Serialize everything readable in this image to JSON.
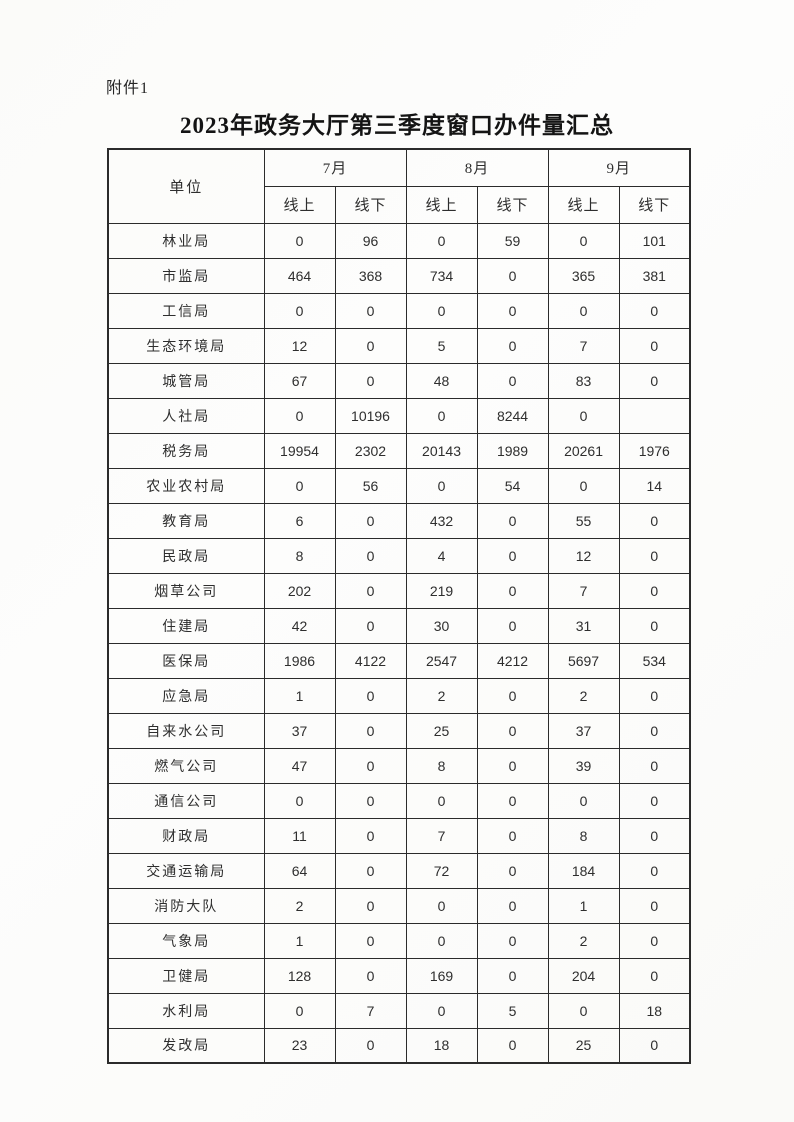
{
  "page": {
    "attachment_label": "附件1",
    "title": "2023年政务大厅第三季度窗口办件量汇总"
  },
  "table": {
    "unit_header": "单位",
    "months": [
      "7月",
      "8月",
      "9月"
    ],
    "channels": [
      "线上",
      "线下"
    ],
    "rows": [
      {
        "unit": "林业局",
        "values": [
          "0",
          "96",
          "0",
          "59",
          "0",
          "101"
        ]
      },
      {
        "unit": "市监局",
        "values": [
          "464",
          "368",
          "734",
          "0",
          "365",
          "381"
        ]
      },
      {
        "unit": "工信局",
        "values": [
          "0",
          "0",
          "0",
          "0",
          "0",
          "0"
        ]
      },
      {
        "unit": "生态环境局",
        "values": [
          "12",
          "0",
          "5",
          "0",
          "7",
          "0"
        ]
      },
      {
        "unit": "城管局",
        "values": [
          "67",
          "0",
          "48",
          "0",
          "83",
          "0"
        ]
      },
      {
        "unit": "人社局",
        "values": [
          "0",
          "10196",
          "0",
          "8244",
          "0",
          ""
        ]
      },
      {
        "unit": "税务局",
        "values": [
          "19954",
          "2302",
          "20143",
          "1989",
          "20261",
          "1976"
        ]
      },
      {
        "unit": "农业农村局",
        "values": [
          "0",
          "56",
          "0",
          "54",
          "0",
          "14"
        ]
      },
      {
        "unit": "教育局",
        "values": [
          "6",
          "0",
          "432",
          "0",
          "55",
          "0"
        ]
      },
      {
        "unit": "民政局",
        "values": [
          "8",
          "0",
          "4",
          "0",
          "12",
          "0"
        ]
      },
      {
        "unit": "烟草公司",
        "values": [
          "202",
          "0",
          "219",
          "0",
          "7",
          "0"
        ]
      },
      {
        "unit": "住建局",
        "values": [
          "42",
          "0",
          "30",
          "0",
          "31",
          "0"
        ]
      },
      {
        "unit": "医保局",
        "values": [
          "1986",
          "4122",
          "2547",
          "4212",
          "5697",
          "534"
        ]
      },
      {
        "unit": "应急局",
        "values": [
          "1",
          "0",
          "2",
          "0",
          "2",
          "0"
        ]
      },
      {
        "unit": "自来水公司",
        "values": [
          "37",
          "0",
          "25",
          "0",
          "37",
          "0"
        ]
      },
      {
        "unit": "燃气公司",
        "values": [
          "47",
          "0",
          "8",
          "0",
          "39",
          "0"
        ]
      },
      {
        "unit": "通信公司",
        "values": [
          "0",
          "0",
          "0",
          "0",
          "0",
          "0"
        ]
      },
      {
        "unit": "财政局",
        "values": [
          "11",
          "0",
          "7",
          "0",
          "8",
          "0"
        ]
      },
      {
        "unit": "交通运输局",
        "values": [
          "64",
          "0",
          "72",
          "0",
          "184",
          "0"
        ]
      },
      {
        "unit": "消防大队",
        "values": [
          "2",
          "0",
          "0",
          "0",
          "1",
          "0"
        ]
      },
      {
        "unit": "气象局",
        "values": [
          "1",
          "0",
          "0",
          "0",
          "2",
          "0"
        ]
      },
      {
        "unit": "卫健局",
        "values": [
          "128",
          "0",
          "169",
          "0",
          "204",
          "0"
        ]
      },
      {
        "unit": "水利局",
        "values": [
          "0",
          "7",
          "0",
          "5",
          "0",
          "18"
        ]
      },
      {
        "unit": "发改局",
        "values": [
          "23",
          "0",
          "18",
          "0",
          "25",
          "0"
        ]
      }
    ]
  }
}
